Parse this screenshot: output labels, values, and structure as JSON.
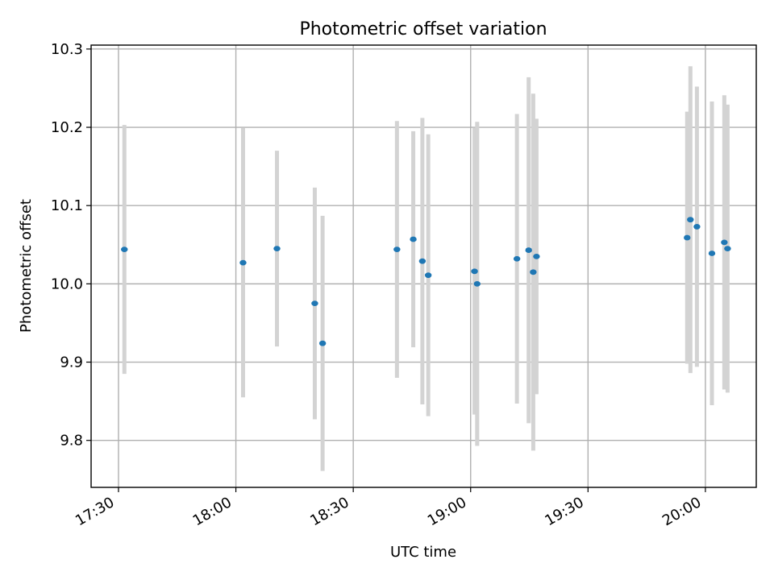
{
  "chart_data": {
    "type": "scatter",
    "title": "Photometric offset variation",
    "xlabel": "UTC time",
    "ylabel": "Photometric offset",
    "xlim": [
      "17:23",
      "20:13"
    ],
    "ylim": [
      9.74,
      10.305
    ],
    "x_ticks": [
      "17:30",
      "18:00",
      "18:30",
      "19:00",
      "19:30",
      "20:00"
    ],
    "y_ticks": [
      9.8,
      9.9,
      10.0,
      10.1,
      10.2,
      10.3
    ],
    "grid": true,
    "colors": {
      "points": "#1f77b4",
      "errorbars": "#d3d3d3"
    },
    "series": [
      {
        "points": [
          {
            "x": "17:31:30",
            "y": 10.044,
            "err": 0.159
          },
          {
            "x": "18:01:50",
            "y": 10.027,
            "err": 0.172
          },
          {
            "x": "18:10:30",
            "y": 10.045,
            "err": 0.125
          },
          {
            "x": "18:20:10",
            "y": 9.975,
            "err": 0.148
          },
          {
            "x": "18:22:10",
            "y": 9.924,
            "err": 0.163
          },
          {
            "x": "18:41:10",
            "y": 10.044,
            "err": 0.164
          },
          {
            "x": "18:45:20",
            "y": 10.057,
            "err": 0.138
          },
          {
            "x": "18:47:40",
            "y": 10.029,
            "err": 0.183
          },
          {
            "x": "18:49:10",
            "y": 10.011,
            "err": 0.18
          },
          {
            "x": "19:01:00",
            "y": 10.016,
            "err": 0.183
          },
          {
            "x": "19:01:40",
            "y": 10.0,
            "err": 0.207
          },
          {
            "x": "19:11:50",
            "y": 10.032,
            "err": 0.185
          },
          {
            "x": "19:14:50",
            "y": 10.043,
            "err": 0.221
          },
          {
            "x": "19:16:00",
            "y": 10.015,
            "err": 0.228
          },
          {
            "x": "19:16:50",
            "y": 10.035,
            "err": 0.176
          },
          {
            "x": "19:55:20",
            "y": 10.059,
            "err": 0.161
          },
          {
            "x": "19:56:10",
            "y": 10.082,
            "err": 0.196
          },
          {
            "x": "19:57:50",
            "y": 10.073,
            "err": 0.179
          },
          {
            "x": "20:01:40",
            "y": 10.039,
            "err": 0.194
          },
          {
            "x": "20:04:50",
            "y": 10.053,
            "err": 0.188
          },
          {
            "x": "20:05:40",
            "y": 10.045,
            "err": 0.184
          }
        ]
      }
    ]
  }
}
